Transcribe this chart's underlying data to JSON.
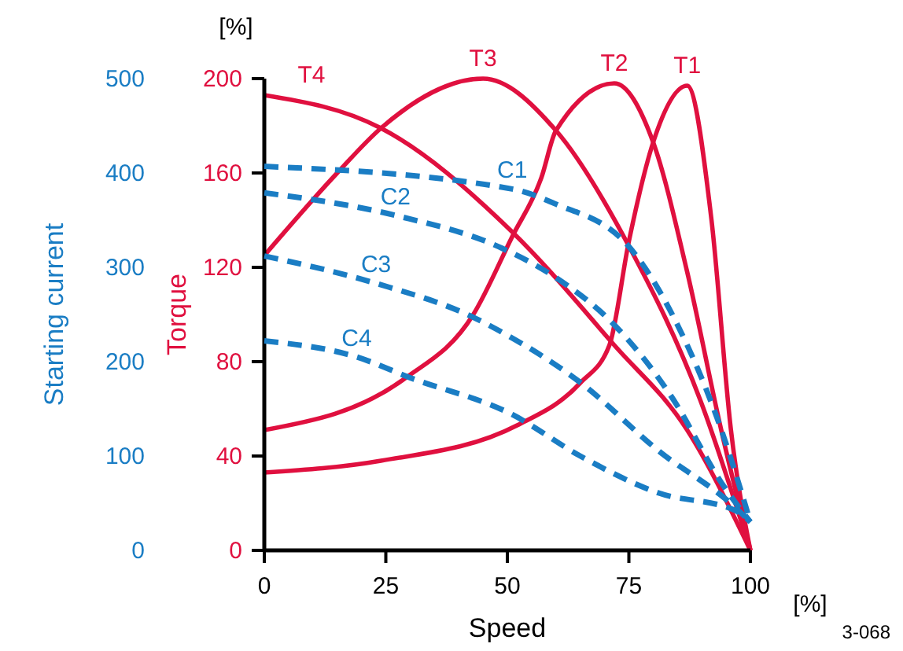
{
  "chart_data": [
    {
      "type": "line",
      "xlabel": "Speed",
      "ylabel": "Torque",
      "xlim": [
        0,
        100
      ],
      "xticks": [
        0,
        25,
        50,
        75,
        100
      ],
      "ylim": [
        0,
        200
      ],
      "yticks": [
        0,
        40,
        80,
        120,
        160,
        200
      ],
      "grid": false,
      "legend": false,
      "marker": "none",
      "annotations": [
        "[%]",
        "[%]",
        "3-068"
      ],
      "series": [
        {
          "name": "T1",
          "color": "#e0103f",
          "line_style": "solid",
          "x": [
            0,
            24,
            52,
            65,
            71,
            75,
            80,
            87,
            92,
            96,
            100
          ],
          "values": [
            33,
            38,
            53,
            71,
            87,
            131,
            173,
            197,
            140,
            51,
            0
          ]
        },
        {
          "name": "T2",
          "color": "#e0103f",
          "line_style": "solid",
          "x": [
            0,
            29,
            43,
            51,
            57,
            60,
            72,
            80,
            87,
            94,
            100
          ],
          "values": [
            51,
            73,
            100,
            133,
            158,
            178,
            198,
            173,
            118,
            51,
            0
          ]
        },
        {
          "name": "T3",
          "color": "#e0103f",
          "line_style": "solid",
          "x": [
            0,
            15,
            24,
            45,
            60,
            75,
            90,
            100
          ],
          "values": [
            125,
            160,
            179,
            200,
            178,
            129,
            62,
            0
          ]
        },
        {
          "name": "T4",
          "color": "#e0103f",
          "line_style": "solid",
          "x": [
            0,
            24,
            51,
            72,
            87,
            100
          ],
          "values": [
            193,
            179,
            135,
            87,
            51,
            0
          ]
        }
      ]
    },
    {
      "type": "line",
      "ylabel": "Starting current",
      "tick_labels": "y",
      "xlim": [
        0,
        100
      ],
      "ylim": [
        0,
        500
      ],
      "yticks": [
        0,
        100,
        200,
        300,
        400,
        500
      ],
      "grid": false,
      "legend": false,
      "marker": "none",
      "series": [
        {
          "name": "C1",
          "color": "#1a7dc4",
          "line_style": "dashed",
          "x": [
            0,
            51,
            60,
            75,
            85,
            94,
            100
          ],
          "values": [
            407,
            383,
            367,
            322,
            239,
            128,
            30
          ]
        },
        {
          "name": "C2",
          "color": "#1a7dc4",
          "line_style": "dashed",
          "x": [
            0,
            27,
            49,
            60,
            72,
            84,
            94,
            100
          ],
          "values": [
            379,
            355,
            320,
            289,
            239,
            161,
            72,
            30
          ]
        },
        {
          "name": "C3",
          "color": "#1a7dc4",
          "line_style": "dashed",
          "x": [
            0,
            23,
            43,
            50,
            65,
            81,
            97,
            100
          ],
          "values": [
            312,
            283,
            247,
            228,
            178,
            106,
            45,
            30
          ]
        },
        {
          "name": "C4",
          "color": "#1a7dc4",
          "line_style": "dashed",
          "x": [
            0,
            19,
            30,
            51,
            65,
            81,
            97,
            100
          ],
          "values": [
            222,
            205,
            183,
            144,
            100,
            61,
            42,
            30
          ]
        }
      ]
    }
  ]
}
